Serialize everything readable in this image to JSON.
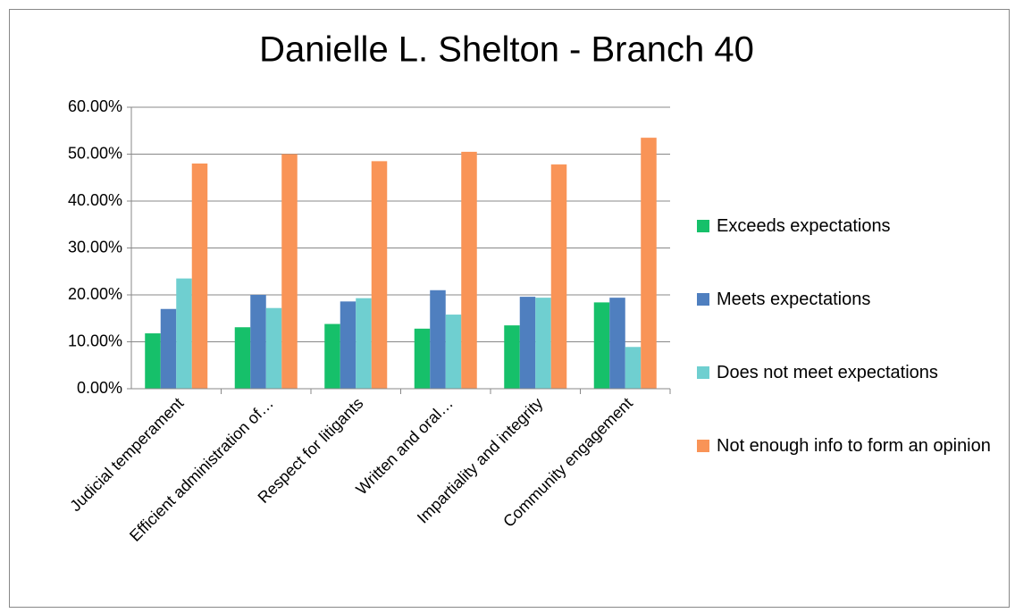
{
  "chart_data": {
    "type": "bar",
    "title": "Danielle L. Shelton - Branch 40",
    "categories": [
      "Judicial temperament",
      "Efficient administration of…",
      "Respect for litigants",
      "Written and oral…",
      "Impartiality and integrity",
      "Community engagement"
    ],
    "series": [
      {
        "name": "Exceeds expectations",
        "color": "#16c06a",
        "values": [
          11.8,
          13.1,
          13.8,
          12.8,
          13.5,
          18.4
        ]
      },
      {
        "name": "Meets expectations",
        "color": "#4f7fbf",
        "values": [
          17.0,
          20.0,
          18.6,
          21.0,
          19.6,
          19.4
        ]
      },
      {
        "name": "Does not meet expectations",
        "color": "#6fcfd0",
        "values": [
          23.5,
          17.2,
          19.3,
          15.8,
          19.4,
          8.9
        ]
      },
      {
        "name": "Not enough info to form an opinion",
        "color": "#f99457",
        "values": [
          48.0,
          50.0,
          48.5,
          50.5,
          47.8,
          53.5
        ]
      }
    ],
    "ylim": [
      0,
      60
    ],
    "yticks": [
      {
        "value": 0,
        "label": "0.00%"
      },
      {
        "value": 10,
        "label": "10.00%"
      },
      {
        "value": 20,
        "label": "20.00%"
      },
      {
        "value": 30,
        "label": "30.00%"
      },
      {
        "value": 40,
        "label": "40.00%"
      },
      {
        "value": 50,
        "label": "50.00%"
      },
      {
        "value": 60,
        "label": "60.00%"
      }
    ],
    "grid": true,
    "legend": "right"
  }
}
